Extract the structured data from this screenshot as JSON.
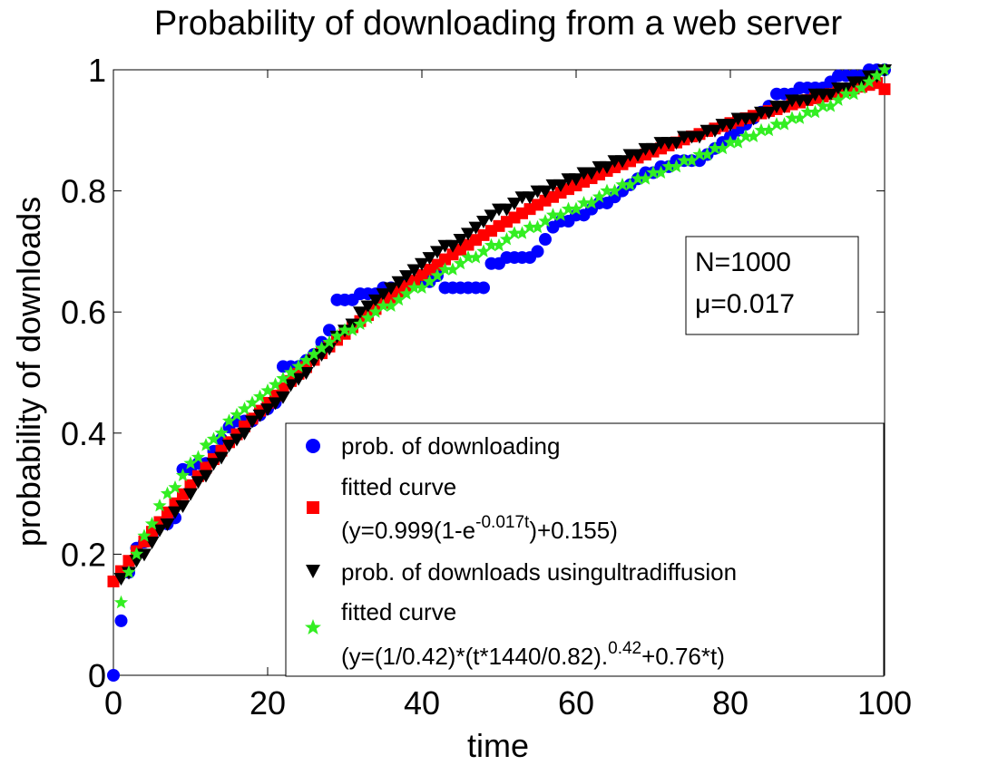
{
  "chart_data": {
    "type": "scatter",
    "title": "Probability of downloading from a web server",
    "xlabel": "time",
    "ylabel": "probability of downloads",
    "xlim": [
      0,
      100
    ],
    "ylim": [
      0,
      1
    ],
    "xticks": [
      0,
      20,
      40,
      60,
      80,
      100
    ],
    "yticks": [
      0,
      0.2,
      0.4,
      0.6,
      0.8,
      1
    ],
    "xtick_labels": [
      "0",
      "20",
      "40",
      "60",
      "80",
      "100"
    ],
    "ytick_labels": [
      "0",
      "0.2",
      "0.4",
      "0.6",
      "0.8",
      "1"
    ],
    "grid": false,
    "legend_position": "lower-right",
    "annotation": {
      "line1": "N=1000",
      "line2": "μ=0.017"
    },
    "legend": {
      "s1": "prob. of downloading",
      "s2_line1": "fitted curve",
      "s2_line2_pre": "(y=0.999(1-e",
      "s2_line2_sup": "-0.017t",
      "s2_line2_post": ")+0.155)",
      "s3": "prob. of downloads usingultradiffusion",
      "s4_line1": "fitted curve",
      "s4_line2_pre": "(y=(1/0.42)*(t*1440/0.82).",
      "s4_line2_sup": "0.42",
      "s4_line2_post": "+0.76*t)"
    },
    "series": [
      {
        "name": "prob. of downloading",
        "marker": "circle",
        "color": "#0000ff",
        "x": [
          0,
          1,
          2,
          3,
          4,
          5,
          6,
          7,
          8,
          9,
          10,
          11,
          12,
          13,
          14,
          15,
          16,
          17,
          18,
          19,
          20,
          21,
          22,
          23,
          24,
          25,
          26,
          27,
          28,
          29,
          30,
          31,
          32,
          33,
          34,
          35,
          36,
          37,
          38,
          39,
          40,
          41,
          42,
          43,
          44,
          45,
          46,
          47,
          48,
          49,
          50,
          51,
          52,
          53,
          54,
          55,
          56,
          57,
          58,
          59,
          60,
          61,
          62,
          63,
          64,
          65,
          66,
          67,
          68,
          69,
          70,
          71,
          72,
          73,
          74,
          75,
          76,
          77,
          78,
          79,
          80,
          81,
          82,
          83,
          84,
          85,
          86,
          87,
          88,
          89,
          90,
          91,
          92,
          93,
          94,
          95,
          96,
          97,
          98,
          99,
          100
        ],
        "y": [
          0.0,
          0.09,
          0.17,
          0.21,
          0.22,
          0.23,
          0.25,
          0.25,
          0.26,
          0.34,
          0.34,
          0.35,
          0.35,
          0.37,
          0.39,
          0.41,
          0.42,
          0.42,
          0.42,
          0.43,
          0.44,
          0.45,
          0.51,
          0.51,
          0.51,
          0.52,
          0.53,
          0.55,
          0.57,
          0.62,
          0.62,
          0.62,
          0.63,
          0.63,
          0.63,
          0.64,
          0.64,
          0.64,
          0.65,
          0.65,
          0.65,
          0.65,
          0.66,
          0.64,
          0.64,
          0.64,
          0.64,
          0.64,
          0.64,
          0.68,
          0.68,
          0.69,
          0.69,
          0.69,
          0.69,
          0.7,
          0.72,
          0.74,
          0.75,
          0.75,
          0.76,
          0.76,
          0.77,
          0.78,
          0.78,
          0.79,
          0.8,
          0.81,
          0.82,
          0.83,
          0.83,
          0.84,
          0.84,
          0.85,
          0.85,
          0.85,
          0.85,
          0.86,
          0.87,
          0.88,
          0.89,
          0.9,
          0.91,
          0.92,
          0.93,
          0.94,
          0.96,
          0.96,
          0.96,
          0.97,
          0.97,
          0.97,
          0.97,
          0.98,
          0.99,
          0.99,
          0.99,
          0.99,
          1.0,
          1.0,
          1.0
        ]
      },
      {
        "name": "fitted curve (y=0.999(1-e^-0.017t)+0.155)",
        "marker": "square",
        "color": "#ff0000",
        "x": [
          0,
          1,
          2,
          3,
          4,
          5,
          6,
          7,
          8,
          9,
          10,
          11,
          12,
          13,
          14,
          15,
          16,
          17,
          18,
          19,
          20,
          21,
          22,
          23,
          24,
          25,
          26,
          27,
          28,
          29,
          30,
          31,
          32,
          33,
          34,
          35,
          36,
          37,
          38,
          39,
          40,
          41,
          42,
          43,
          44,
          45,
          46,
          47,
          48,
          49,
          50,
          51,
          52,
          53,
          54,
          55,
          56,
          57,
          58,
          59,
          60,
          61,
          62,
          63,
          64,
          65,
          66,
          67,
          68,
          69,
          70,
          71,
          72,
          73,
          74,
          75,
          76,
          77,
          78,
          79,
          80,
          81,
          82,
          83,
          84,
          85,
          86,
          87,
          88,
          89,
          90,
          91,
          92,
          93,
          94,
          95,
          96,
          97,
          98,
          99,
          100
        ],
        "y": [
          0.155,
          0.172,
          0.189,
          0.205,
          0.221,
          0.237,
          0.253,
          0.269,
          0.284,
          0.299,
          0.314,
          0.329,
          0.343,
          0.357,
          0.371,
          0.385,
          0.398,
          0.411,
          0.424,
          0.437,
          0.45,
          0.462,
          0.474,
          0.486,
          0.498,
          0.509,
          0.521,
          0.532,
          0.543,
          0.554,
          0.564,
          0.575,
          0.585,
          0.595,
          0.605,
          0.615,
          0.624,
          0.634,
          0.643,
          0.652,
          0.661,
          0.67,
          0.678,
          0.687,
          0.695,
          0.703,
          0.711,
          0.719,
          0.727,
          0.734,
          0.742,
          0.749,
          0.756,
          0.763,
          0.77,
          0.777,
          0.784,
          0.79,
          0.797,
          0.803,
          0.809,
          0.815,
          0.821,
          0.827,
          0.833,
          0.839,
          0.844,
          0.849,
          0.855,
          0.86,
          0.865,
          0.87,
          0.875,
          0.88,
          0.885,
          0.89,
          0.894,
          0.899,
          0.903,
          0.907,
          0.912,
          0.916,
          0.92,
          0.924,
          0.928,
          0.932,
          0.935,
          0.939,
          0.943,
          0.946,
          0.95,
          0.953,
          0.956,
          0.96,
          0.963,
          0.966,
          0.969,
          0.972,
          0.975,
          0.978,
          0.968
        ]
      },
      {
        "name": "prob. of downloads usingultradiffusion",
        "marker": "triangle-down",
        "color": "#000000",
        "x": [
          1,
          2,
          3,
          4,
          5,
          6,
          7,
          8,
          9,
          10,
          11,
          12,
          13,
          14,
          15,
          16,
          17,
          18,
          19,
          20,
          21,
          22,
          23,
          24,
          25,
          26,
          27,
          28,
          29,
          30,
          31,
          32,
          33,
          34,
          35,
          36,
          37,
          38,
          39,
          40,
          41,
          42,
          43,
          44,
          45,
          46,
          47,
          48,
          49,
          50,
          51,
          52,
          53,
          54,
          55,
          56,
          57,
          58,
          59,
          60,
          61,
          62,
          63,
          64,
          65,
          66,
          67,
          68,
          69,
          70,
          71,
          72,
          73,
          74,
          75,
          76,
          77,
          78,
          79,
          80,
          81,
          82,
          83,
          84,
          85,
          86,
          87,
          88,
          89,
          90,
          91,
          92,
          93,
          94,
          95,
          96,
          97,
          98,
          99,
          100
        ],
        "y": [
          0.16,
          0.17,
          0.19,
          0.2,
          0.22,
          0.24,
          0.25,
          0.27,
          0.28,
          0.3,
          0.32,
          0.33,
          0.35,
          0.36,
          0.38,
          0.39,
          0.4,
          0.42,
          0.43,
          0.44,
          0.45,
          0.46,
          0.48,
          0.49,
          0.5,
          0.52,
          0.53,
          0.54,
          0.56,
          0.57,
          0.58,
          0.6,
          0.61,
          0.62,
          0.63,
          0.64,
          0.65,
          0.66,
          0.67,
          0.68,
          0.69,
          0.7,
          0.71,
          0.71,
          0.72,
          0.73,
          0.74,
          0.75,
          0.76,
          0.77,
          0.77,
          0.78,
          0.79,
          0.79,
          0.8,
          0.8,
          0.81,
          0.81,
          0.82,
          0.82,
          0.83,
          0.83,
          0.84,
          0.84,
          0.85,
          0.85,
          0.86,
          0.86,
          0.87,
          0.87,
          0.88,
          0.88,
          0.88,
          0.89,
          0.89,
          0.89,
          0.9,
          0.9,
          0.91,
          0.91,
          0.92,
          0.92,
          0.92,
          0.93,
          0.93,
          0.94,
          0.94,
          0.95,
          0.95,
          0.95,
          0.96,
          0.96,
          0.96,
          0.97,
          0.97,
          0.98,
          0.98,
          0.99,
          0.99,
          1.0
        ]
      },
      {
        "name": "fitted curve (y=(1/0.42)*(t*1440/0.82).^0.42+0.76*t)",
        "marker": "star",
        "color": "#33ee22",
        "x": [
          1,
          2,
          3,
          4,
          5,
          6,
          7,
          8,
          9,
          10,
          11,
          12,
          13,
          14,
          15,
          16,
          17,
          18,
          19,
          20,
          21,
          22,
          23,
          24,
          25,
          26,
          27,
          28,
          29,
          30,
          31,
          32,
          33,
          34,
          35,
          36,
          37,
          38,
          39,
          40,
          41,
          42,
          43,
          44,
          45,
          46,
          47,
          48,
          49,
          50,
          51,
          52,
          53,
          54,
          55,
          56,
          57,
          58,
          59,
          60,
          61,
          62,
          63,
          64,
          65,
          66,
          67,
          68,
          69,
          70,
          71,
          72,
          73,
          74,
          75,
          76,
          77,
          78,
          79,
          80,
          81,
          82,
          83,
          84,
          85,
          86,
          87,
          88,
          89,
          90,
          91,
          92,
          93,
          94,
          95,
          96,
          97,
          98,
          99,
          100
        ],
        "y": [
          0.12,
          0.17,
          0.2,
          0.23,
          0.25,
          0.28,
          0.3,
          0.31,
          0.33,
          0.35,
          0.36,
          0.38,
          0.39,
          0.4,
          0.42,
          0.43,
          0.44,
          0.45,
          0.46,
          0.47,
          0.48,
          0.49,
          0.5,
          0.51,
          0.52,
          0.53,
          0.54,
          0.55,
          0.56,
          0.57,
          0.57,
          0.58,
          0.59,
          0.6,
          0.61,
          0.61,
          0.62,
          0.63,
          0.64,
          0.64,
          0.65,
          0.66,
          0.67,
          0.67,
          0.68,
          0.69,
          0.69,
          0.7,
          0.71,
          0.71,
          0.72,
          0.73,
          0.73,
          0.74,
          0.74,
          0.75,
          0.76,
          0.76,
          0.77,
          0.77,
          0.78,
          0.78,
          0.79,
          0.8,
          0.8,
          0.81,
          0.81,
          0.82,
          0.82,
          0.83,
          0.83,
          0.84,
          0.84,
          0.85,
          0.85,
          0.86,
          0.86,
          0.87,
          0.87,
          0.88,
          0.88,
          0.89,
          0.89,
          0.9,
          0.9,
          0.91,
          0.91,
          0.92,
          0.92,
          0.93,
          0.93,
          0.94,
          0.94,
          0.95,
          0.96,
          0.96,
          0.97,
          0.98,
          0.99,
          1.0
        ]
      }
    ]
  }
}
